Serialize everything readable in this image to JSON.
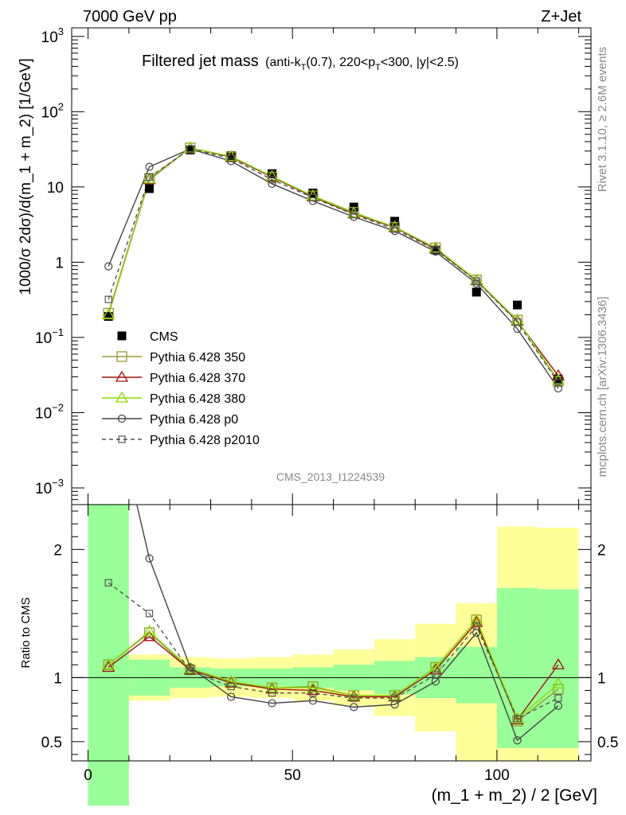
{
  "header": {
    "left": "7000 GeV pp",
    "right": "Z+Jet"
  },
  "side": {
    "rivet": "Rivet 3.1.10, ≥ 2.6M events",
    "mcplots": "mcplots.cern.ch [arXiv:1306.3436]"
  },
  "colors": {
    "cms": "#000000",
    "p350": "#999933",
    "p370": "#a01010",
    "p380": "#88dd00",
    "p0": "#444444",
    "p2010": "#555555",
    "band_green": "#99ff99",
    "band_yellow": "#ffff99"
  },
  "chart_data": [
    {
      "type": "line",
      "title": "Filtered jet mass",
      "subtitle_parts": {
        "a": "(anti-k",
        "b": "T",
        "c": "(0.7), 220<p",
        "d": "T",
        "e": "<300, |y|<2.5)"
      },
      "ylabel": "1000/σ 2dσ)/d(m_1 + m_2) [1/GeV]",
      "analysis_id": "CMS_2013_I1224539",
      "ylog": true,
      "ylim": [
        0.0006,
        1300
      ],
      "xlim": [
        -4,
        123
      ],
      "yticks": [
        {
          "base": "10",
          "exp": "3",
          "v": 1000
        },
        {
          "base": "10",
          "exp": "2",
          "v": 100
        },
        {
          "base": "10",
          "exp": "",
          "v": 10
        },
        {
          "base": "1",
          "exp": "",
          "v": 1
        },
        {
          "base": "10",
          "exp": "−1",
          "v": 0.1
        },
        {
          "base": "10",
          "exp": "−2",
          "v": 0.01
        },
        {
          "base": "10",
          "exp": "−3",
          "v": 0.001
        }
      ],
      "x": [
        5,
        15,
        25,
        35,
        45,
        55,
        65,
        75,
        85,
        95,
        105,
        115
      ],
      "legend": [
        "CMS",
        "Pythia 6.428 350",
        "Pythia 6.428 370",
        "Pythia 6.428 380",
        "Pythia 6.428 p0",
        "Pythia 6.428 p2010"
      ],
      "series": [
        {
          "name": "CMS",
          "values": [
            0.19,
            9.5,
            31,
            26,
            15,
            8.3,
            5.4,
            3.5,
            1.45,
            0.4,
            0.27,
            0.028
          ]
        },
        {
          "name": "Pythia 6.428 350",
          "values": [
            0.21,
            13,
            33,
            25,
            13.5,
            7.6,
            4.6,
            2.9,
            1.55,
            0.58,
            0.17,
            0.026
          ]
        },
        {
          "name": "Pythia 6.428 370",
          "values": [
            0.2,
            12.5,
            33,
            25,
            13.5,
            7.4,
            4.4,
            2.9,
            1.5,
            0.57,
            0.165,
            0.031
          ]
        },
        {
          "name": "Pythia 6.428 380",
          "values": [
            0.2,
            12.8,
            33,
            25.5,
            13.8,
            7.6,
            4.5,
            2.95,
            1.55,
            0.58,
            0.17,
            0.027
          ]
        },
        {
          "name": "Pythia 6.428 p0",
          "values": [
            0.88,
            18.5,
            32,
            22,
            11,
            6.5,
            4.0,
            2.6,
            1.38,
            0.52,
            0.13,
            0.021
          ]
        },
        {
          "name": "Pythia 6.428 p2010",
          "values": [
            0.32,
            13.5,
            32,
            24,
            12.5,
            7.2,
            4.3,
            2.75,
            1.46,
            0.56,
            0.16,
            0.025
          ]
        }
      ]
    },
    {
      "type": "line",
      "ylabel": "Ratio to CMS",
      "xlabel": "(m_1 + m_2) / 2 [GeV]",
      "ylim": [
        0.35,
        2.35
      ],
      "xlim": [
        -4,
        123
      ],
      "yticks": [
        0.5,
        1,
        2
      ],
      "xticks": [
        0,
        50,
        100
      ],
      "x": [
        5,
        15,
        25,
        35,
        45,
        55,
        65,
        75,
        85,
        95,
        105,
        115
      ],
      "bins": [
        [
          0,
          10
        ],
        [
          10,
          20
        ],
        [
          20,
          30
        ],
        [
          30,
          40
        ],
        [
          40,
          50
        ],
        [
          50,
          60
        ],
        [
          60,
          70
        ],
        [
          70,
          80
        ],
        [
          80,
          90
        ],
        [
          90,
          100
        ],
        [
          100,
          110
        ],
        [
          110,
          120
        ]
      ],
      "band_green": [
        [
          0,
          2.35
        ],
        [
          0.86,
          1.14
        ],
        [
          0.92,
          1.08
        ],
        [
          0.93,
          1.07
        ],
        [
          0.93,
          1.07
        ],
        [
          0.92,
          1.08
        ],
        [
          0.9,
          1.1
        ],
        [
          0.87,
          1.13
        ],
        [
          0.84,
          1.16
        ],
        [
          0.8,
          1.24
        ],
        [
          0.45,
          1.7
        ],
        [
          0.45,
          1.69
        ]
      ],
      "band_yellow": [
        [
          0,
          2.35
        ],
        [
          0.82,
          1.18
        ],
        [
          0.84,
          1.16
        ],
        [
          0.85,
          1.15
        ],
        [
          0.84,
          1.16
        ],
        [
          0.82,
          1.18
        ],
        [
          0.78,
          1.22
        ],
        [
          0.7,
          1.3
        ],
        [
          0.58,
          1.42
        ],
        [
          0.35,
          1.58
        ],
        [
          0.35,
          2.18
        ],
        [
          0.35,
          2.17
        ]
      ],
      "series": [
        {
          "name": "Pythia 6.428 350",
          "values": [
            1.1,
            1.35,
            1.06,
            0.96,
            0.92,
            0.93,
            0.86,
            0.86,
            1.08,
            1.45,
            0.66,
            0.91
          ]
        },
        {
          "name": "Pythia 6.428 370",
          "values": [
            1.08,
            1.32,
            1.06,
            0.96,
            0.91,
            0.9,
            0.85,
            0.85,
            1.06,
            1.43,
            0.67,
            1.1
          ]
        },
        {
          "name": "Pythia 6.428 380",
          "values": [
            1.1,
            1.36,
            1.07,
            0.97,
            0.92,
            0.92,
            0.86,
            0.86,
            1.08,
            1.45,
            0.68,
            0.95
          ]
        },
        {
          "name": "Pythia 6.428 p0",
          "values": [
            3.3,
            1.93,
            1.08,
            0.85,
            0.8,
            0.82,
            0.77,
            0.79,
            0.97,
            1.35,
            0.51,
            0.78
          ]
        },
        {
          "name": "Pythia 6.428 p2010",
          "values": [
            1.74,
            1.5,
            1.05,
            0.93,
            0.88,
            0.88,
            0.84,
            0.84,
            1.02,
            1.4,
            0.68,
            0.84
          ]
        }
      ]
    }
  ]
}
